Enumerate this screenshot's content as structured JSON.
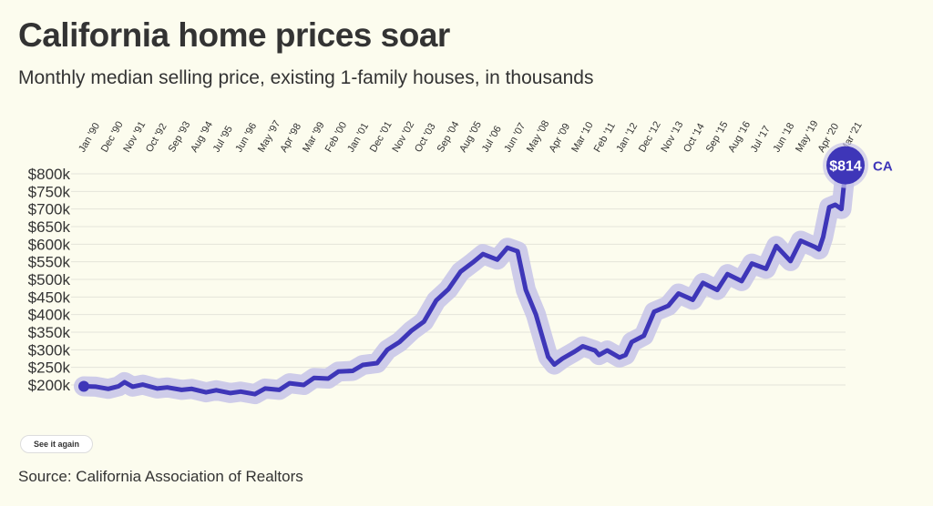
{
  "title": "California home prices soar",
  "subtitle": "Monthly median selling price, existing 1-family houses, in thousands",
  "source": "Source: California Association of Realtors",
  "button_label": "See it again",
  "colors": {
    "line": "#3e36b8",
    "halo": "#c9c6e8",
    "grid": "#e4e4da"
  },
  "chart_data": {
    "type": "line",
    "title": "California home prices soar",
    "ylim": [
      200,
      800
    ],
    "y_ticks": [
      "$200k",
      "$250k",
      "$300k",
      "$350k",
      "$400k",
      "$450k",
      "$500k",
      "$550k",
      "$600k",
      "$650k",
      "$700k",
      "$750k",
      "$800k"
    ],
    "x_ticks": [
      "Jan '90",
      "Dec '90",
      "Nov '91",
      "Oct '92",
      "Sep '93",
      "Aug '94",
      "Jul '95",
      "Jun '96",
      "May '97",
      "Apr '98",
      "Mar '99",
      "Feb '00",
      "Jan '01",
      "Dec '01",
      "Nov '02",
      "Oct '03",
      "Sep '04",
      "Aug '05",
      "Jul '06",
      "Jun '07",
      "May '08",
      "Apr '09",
      "Mar '10",
      "Feb '11",
      "Jan '12",
      "Dec '12",
      "Nov '13",
      "Oct '14",
      "Sep '15",
      "Aug '16",
      "Jul '17",
      "Jun '18",
      "May '19",
      "Apr '20",
      "Mar '21"
    ],
    "end_label": "$814",
    "series_label": "CA",
    "series": [
      {
        "name": "CA",
        "points": [
          [
            "1990-01",
            196
          ],
          [
            "1990-07",
            195
          ],
          [
            "1991-01",
            189
          ],
          [
            "1991-06",
            196
          ],
          [
            "1991-09",
            208
          ],
          [
            "1992-01",
            195
          ],
          [
            "1992-06",
            201
          ],
          [
            "1993-01",
            190
          ],
          [
            "1993-06",
            193
          ],
          [
            "1994-01",
            186
          ],
          [
            "1994-06",
            189
          ],
          [
            "1995-01",
            179
          ],
          [
            "1995-06",
            185
          ],
          [
            "1996-01",
            177
          ],
          [
            "1996-06",
            181
          ],
          [
            "1997-01",
            174
          ],
          [
            "1997-06",
            190
          ],
          [
            "1998-01",
            186
          ],
          [
            "1998-06",
            205
          ],
          [
            "1999-01",
            200
          ],
          [
            "1999-06",
            220
          ],
          [
            "2000-01",
            218
          ],
          [
            "2000-06",
            238
          ],
          [
            "2001-01",
            240
          ],
          [
            "2001-06",
            257
          ],
          [
            "2002-01",
            262
          ],
          [
            "2002-06",
            300
          ],
          [
            "2002-12",
            322
          ],
          [
            "2003-06",
            355
          ],
          [
            "2003-12",
            380
          ],
          [
            "2004-06",
            440
          ],
          [
            "2004-12",
            472
          ],
          [
            "2005-06",
            522
          ],
          [
            "2005-12",
            548
          ],
          [
            "2006-05",
            572
          ],
          [
            "2006-12",
            556
          ],
          [
            "2007-05",
            590
          ],
          [
            "2007-10",
            580
          ],
          [
            "2008-02",
            470
          ],
          [
            "2008-07",
            400
          ],
          [
            "2009-01",
            280
          ],
          [
            "2009-04",
            258
          ],
          [
            "2009-08",
            275
          ],
          [
            "2010-02",
            295
          ],
          [
            "2010-06",
            310
          ],
          [
            "2010-12",
            298
          ],
          [
            "2011-02",
            285
          ],
          [
            "2011-06",
            298
          ],
          [
            "2011-12",
            278
          ],
          [
            "2012-03",
            285
          ],
          [
            "2012-06",
            322
          ],
          [
            "2012-12",
            340
          ],
          [
            "2013-05",
            408
          ],
          [
            "2013-12",
            425
          ],
          [
            "2014-05",
            460
          ],
          [
            "2014-12",
            442
          ],
          [
            "2015-05",
            490
          ],
          [
            "2015-12",
            470
          ],
          [
            "2016-05",
            515
          ],
          [
            "2016-12",
            495
          ],
          [
            "2017-05",
            545
          ],
          [
            "2017-12",
            530
          ],
          [
            "2018-05",
            595
          ],
          [
            "2018-12",
            552
          ],
          [
            "2019-05",
            610
          ],
          [
            "2019-12",
            592
          ],
          [
            "2020-02",
            585
          ],
          [
            "2020-04",
            620
          ],
          [
            "2020-07",
            705
          ],
          [
            "2020-10",
            712
          ],
          [
            "2021-01",
            700
          ],
          [
            "2021-03",
            814
          ]
        ]
      }
    ]
  }
}
